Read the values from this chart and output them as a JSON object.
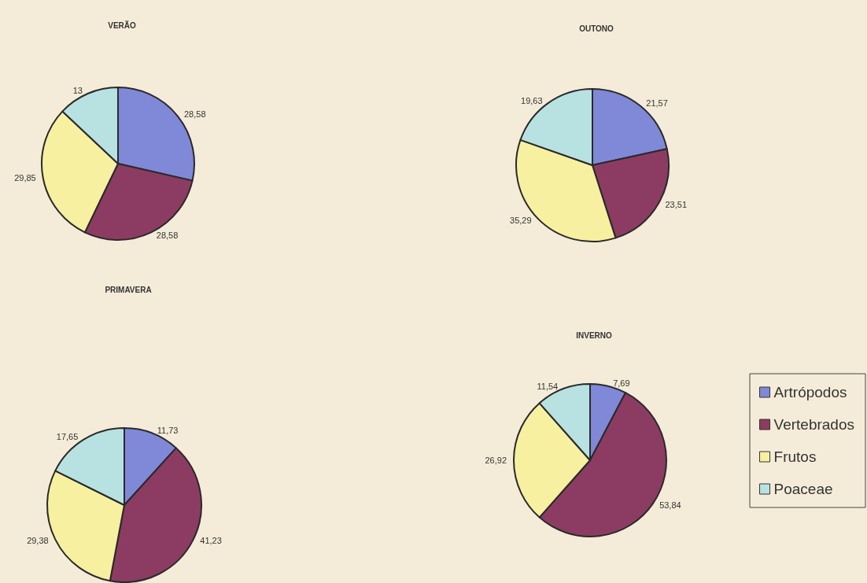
{
  "chart_data": [
    {
      "type": "pie",
      "title": "VERÃO",
      "values": [
        28.58,
        28.58,
        29.85,
        13
      ],
      "value_labels": [
        "28,58",
        "28,58",
        "29,85",
        "13"
      ],
      "colors": [
        "#8088d8",
        "#8c3c62",
        "#f6f0a0",
        "#b8e2e2"
      ]
    },
    {
      "type": "pie",
      "title": "OUTONO",
      "values": [
        21.57,
        23.51,
        35.29,
        19.63
      ],
      "value_labels": [
        "21,57",
        "23,51",
        "35,29",
        "19,63"
      ],
      "colors": [
        "#8088d8",
        "#8c3c62",
        "#f6f0a0",
        "#b8e2e2"
      ]
    },
    {
      "type": "pie",
      "title": "PRIMAVERA",
      "values": [
        11.73,
        41.23,
        29.38,
        17.65
      ],
      "value_labels": [
        "11,73",
        "41,23",
        "29,38",
        "17,65"
      ],
      "colors": [
        "#8088d8",
        "#8c3c62",
        "#f6f0a0",
        "#b8e2e2"
      ]
    },
    {
      "type": "pie",
      "title": "INVERNO",
      "categories": [
        "Artrópodos",
        "Vertebrados",
        "Frutos",
        "Poaceae"
      ],
      "values": [
        7.69,
        53.84,
        26.92,
        11.54
      ],
      "value_labels": [
        "7,69",
        "53,84",
        "26,92",
        "11,54"
      ],
      "colors": [
        "#8088d8",
        "#8c3c62",
        "#f6f0a0",
        "#b8e2e2"
      ],
      "legend": "right"
    }
  ]
}
